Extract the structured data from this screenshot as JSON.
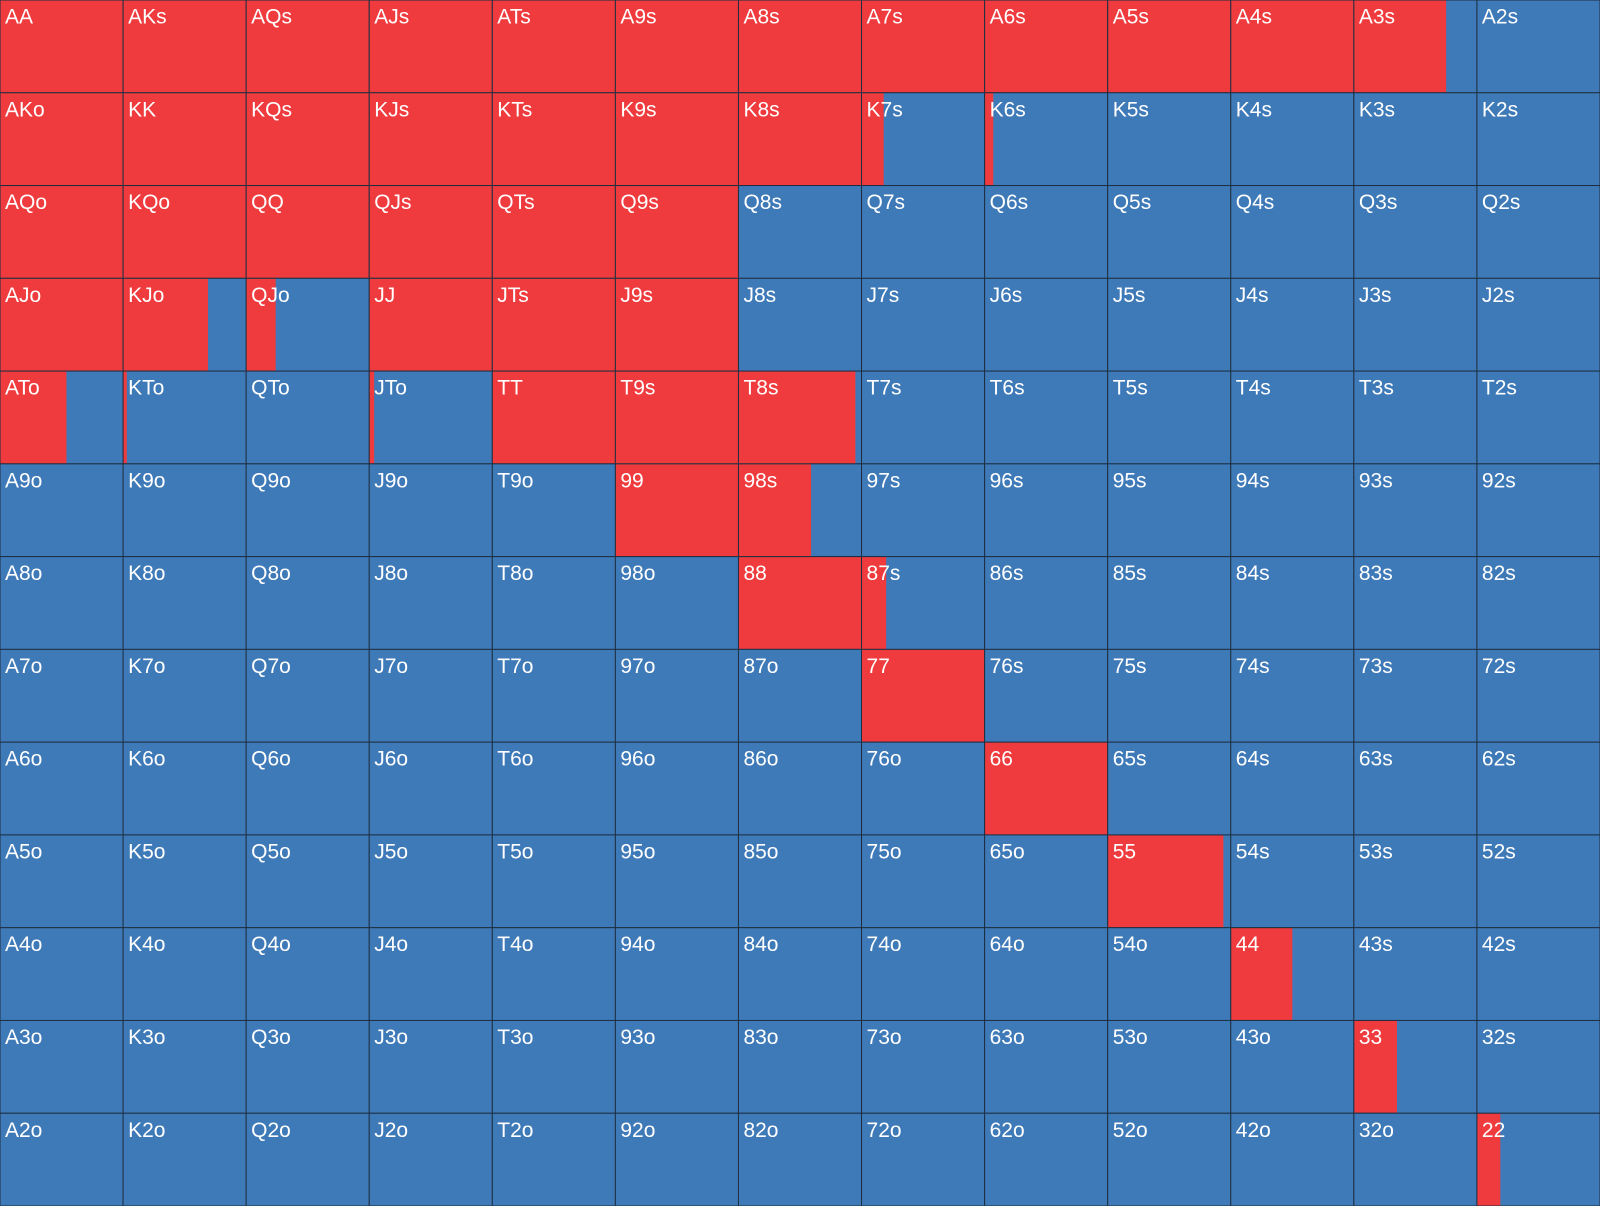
{
  "grid": {
    "rows": [
      [
        {
          "hand": "AA",
          "raise": 100
        },
        {
          "hand": "AKs",
          "raise": 100
        },
        {
          "hand": "AQs",
          "raise": 100
        },
        {
          "hand": "AJs",
          "raise": 100
        },
        {
          "hand": "ATs",
          "raise": 100
        },
        {
          "hand": "A9s",
          "raise": 100
        },
        {
          "hand": "A8s",
          "raise": 100
        },
        {
          "hand": "A7s",
          "raise": 100
        },
        {
          "hand": "A6s",
          "raise": 100
        },
        {
          "hand": "A5s",
          "raise": 100
        },
        {
          "hand": "A4s",
          "raise": 100
        },
        {
          "hand": "A3s",
          "raise": 75
        },
        {
          "hand": "A2s",
          "raise": 0
        }
      ],
      [
        {
          "hand": "AKo",
          "raise": 100
        },
        {
          "hand": "KK",
          "raise": 100
        },
        {
          "hand": "KQs",
          "raise": 100
        },
        {
          "hand": "KJs",
          "raise": 100
        },
        {
          "hand": "KTs",
          "raise": 100
        },
        {
          "hand": "K9s",
          "raise": 100
        },
        {
          "hand": "K8s",
          "raise": 100
        },
        {
          "hand": "K7s",
          "raise": 18
        },
        {
          "hand": "K6s",
          "raise": 7
        },
        {
          "hand": "K5s",
          "raise": 0
        },
        {
          "hand": "K4s",
          "raise": 0
        },
        {
          "hand": "K3s",
          "raise": 0
        },
        {
          "hand": "K2s",
          "raise": 0
        }
      ],
      [
        {
          "hand": "AQo",
          "raise": 100
        },
        {
          "hand": "KQo",
          "raise": 100
        },
        {
          "hand": "QQ",
          "raise": 100
        },
        {
          "hand": "QJs",
          "raise": 100
        },
        {
          "hand": "QTs",
          "raise": 100
        },
        {
          "hand": "Q9s",
          "raise": 100
        },
        {
          "hand": "Q8s",
          "raise": 0
        },
        {
          "hand": "Q7s",
          "raise": 0
        },
        {
          "hand": "Q6s",
          "raise": 0
        },
        {
          "hand": "Q5s",
          "raise": 0
        },
        {
          "hand": "Q4s",
          "raise": 0
        },
        {
          "hand": "Q3s",
          "raise": 0
        },
        {
          "hand": "Q2s",
          "raise": 0
        }
      ],
      [
        {
          "hand": "AJo",
          "raise": 100
        },
        {
          "hand": "KJo",
          "raise": 69
        },
        {
          "hand": "QJo",
          "raise": 24
        },
        {
          "hand": "JJ",
          "raise": 100
        },
        {
          "hand": "JTs",
          "raise": 100
        },
        {
          "hand": "J9s",
          "raise": 100
        },
        {
          "hand": "J8s",
          "raise": 0
        },
        {
          "hand": "J7s",
          "raise": 0
        },
        {
          "hand": "J6s",
          "raise": 0
        },
        {
          "hand": "J5s",
          "raise": 0
        },
        {
          "hand": "J4s",
          "raise": 0
        },
        {
          "hand": "J3s",
          "raise": 0
        },
        {
          "hand": "J2s",
          "raise": 0
        }
      ],
      [
        {
          "hand": "ATo",
          "raise": 54
        },
        {
          "hand": "KTo",
          "raise": 3
        },
        {
          "hand": "QTo",
          "raise": 0
        },
        {
          "hand": "JTo",
          "raise": 4
        },
        {
          "hand": "TT",
          "raise": 100
        },
        {
          "hand": "T9s",
          "raise": 100
        },
        {
          "hand": "T8s",
          "raise": 95
        },
        {
          "hand": "T7s",
          "raise": 0
        },
        {
          "hand": "T6s",
          "raise": 0
        },
        {
          "hand": "T5s",
          "raise": 0
        },
        {
          "hand": "T4s",
          "raise": 0
        },
        {
          "hand": "T3s",
          "raise": 0
        },
        {
          "hand": "T2s",
          "raise": 0
        }
      ],
      [
        {
          "hand": "A9o",
          "raise": 0
        },
        {
          "hand": "K9o",
          "raise": 0
        },
        {
          "hand": "Q9o",
          "raise": 0
        },
        {
          "hand": "J9o",
          "raise": 0
        },
        {
          "hand": "T9o",
          "raise": 0
        },
        {
          "hand": "99",
          "raise": 100
        },
        {
          "hand": "98s",
          "raise": 59
        },
        {
          "hand": "97s",
          "raise": 0
        },
        {
          "hand": "96s",
          "raise": 0
        },
        {
          "hand": "95s",
          "raise": 0
        },
        {
          "hand": "94s",
          "raise": 0
        },
        {
          "hand": "93s",
          "raise": 0
        },
        {
          "hand": "92s",
          "raise": 0
        }
      ],
      [
        {
          "hand": "A8o",
          "raise": 0
        },
        {
          "hand": "K8o",
          "raise": 0
        },
        {
          "hand": "Q8o",
          "raise": 0
        },
        {
          "hand": "J8o",
          "raise": 0
        },
        {
          "hand": "T8o",
          "raise": 0
        },
        {
          "hand": "98o",
          "raise": 0
        },
        {
          "hand": "88",
          "raise": 100
        },
        {
          "hand": "87s",
          "raise": 20
        },
        {
          "hand": "86s",
          "raise": 0
        },
        {
          "hand": "85s",
          "raise": 0
        },
        {
          "hand": "84s",
          "raise": 0
        },
        {
          "hand": "83s",
          "raise": 0
        },
        {
          "hand": "82s",
          "raise": 0
        }
      ],
      [
        {
          "hand": "A7o",
          "raise": 0
        },
        {
          "hand": "K7o",
          "raise": 0
        },
        {
          "hand": "Q7o",
          "raise": 0
        },
        {
          "hand": "J7o",
          "raise": 0
        },
        {
          "hand": "T7o",
          "raise": 0
        },
        {
          "hand": "97o",
          "raise": 0
        },
        {
          "hand": "87o",
          "raise": 0
        },
        {
          "hand": "77",
          "raise": 100
        },
        {
          "hand": "76s",
          "raise": 0
        },
        {
          "hand": "75s",
          "raise": 0
        },
        {
          "hand": "74s",
          "raise": 0
        },
        {
          "hand": "73s",
          "raise": 0
        },
        {
          "hand": "72s",
          "raise": 0
        }
      ],
      [
        {
          "hand": "A6o",
          "raise": 0
        },
        {
          "hand": "K6o",
          "raise": 0
        },
        {
          "hand": "Q6o",
          "raise": 0
        },
        {
          "hand": "J6o",
          "raise": 0
        },
        {
          "hand": "T6o",
          "raise": 0
        },
        {
          "hand": "96o",
          "raise": 0
        },
        {
          "hand": "86o",
          "raise": 0
        },
        {
          "hand": "76o",
          "raise": 0
        },
        {
          "hand": "66",
          "raise": 100
        },
        {
          "hand": "65s",
          "raise": 0
        },
        {
          "hand": "64s",
          "raise": 0
        },
        {
          "hand": "63s",
          "raise": 0
        },
        {
          "hand": "62s",
          "raise": 0
        }
      ],
      [
        {
          "hand": "A5o",
          "raise": 0
        },
        {
          "hand": "K5o",
          "raise": 0
        },
        {
          "hand": "Q5o",
          "raise": 0
        },
        {
          "hand": "J5o",
          "raise": 0
        },
        {
          "hand": "T5o",
          "raise": 0
        },
        {
          "hand": "95o",
          "raise": 0
        },
        {
          "hand": "85o",
          "raise": 0
        },
        {
          "hand": "75o",
          "raise": 0
        },
        {
          "hand": "65o",
          "raise": 0
        },
        {
          "hand": "55",
          "raise": 94
        },
        {
          "hand": "54s",
          "raise": 0
        },
        {
          "hand": "53s",
          "raise": 0
        },
        {
          "hand": "52s",
          "raise": 0
        }
      ],
      [
        {
          "hand": "A4o",
          "raise": 0
        },
        {
          "hand": "K4o",
          "raise": 0
        },
        {
          "hand": "Q4o",
          "raise": 0
        },
        {
          "hand": "J4o",
          "raise": 0
        },
        {
          "hand": "T4o",
          "raise": 0
        },
        {
          "hand": "94o",
          "raise": 0
        },
        {
          "hand": "84o",
          "raise": 0
        },
        {
          "hand": "74o",
          "raise": 0
        },
        {
          "hand": "64o",
          "raise": 0
        },
        {
          "hand": "54o",
          "raise": 0
        },
        {
          "hand": "44",
          "raise": 50
        },
        {
          "hand": "43s",
          "raise": 0
        },
        {
          "hand": "42s",
          "raise": 0
        }
      ],
      [
        {
          "hand": "A3o",
          "raise": 0
        },
        {
          "hand": "K3o",
          "raise": 0
        },
        {
          "hand": "Q3o",
          "raise": 0
        },
        {
          "hand": "J3o",
          "raise": 0
        },
        {
          "hand": "T3o",
          "raise": 0
        },
        {
          "hand": "93o",
          "raise": 0
        },
        {
          "hand": "83o",
          "raise": 0
        },
        {
          "hand": "73o",
          "raise": 0
        },
        {
          "hand": "63o",
          "raise": 0
        },
        {
          "hand": "53o",
          "raise": 0
        },
        {
          "hand": "43o",
          "raise": 0
        },
        {
          "hand": "33",
          "raise": 35
        },
        {
          "hand": "32s",
          "raise": 0
        }
      ],
      [
        {
          "hand": "A2o",
          "raise": 0
        },
        {
          "hand": "K2o",
          "raise": 0
        },
        {
          "hand": "Q2o",
          "raise": 0
        },
        {
          "hand": "J2o",
          "raise": 0
        },
        {
          "hand": "T2o",
          "raise": 0
        },
        {
          "hand": "92o",
          "raise": 0
        },
        {
          "hand": "82o",
          "raise": 0
        },
        {
          "hand": "72o",
          "raise": 0
        },
        {
          "hand": "62o",
          "raise": 0
        },
        {
          "hand": "52o",
          "raise": 0
        },
        {
          "hand": "42o",
          "raise": 0
        },
        {
          "hand": "32o",
          "raise": 0
        },
        {
          "hand": "22",
          "raise": 19
        }
      ]
    ]
  }
}
